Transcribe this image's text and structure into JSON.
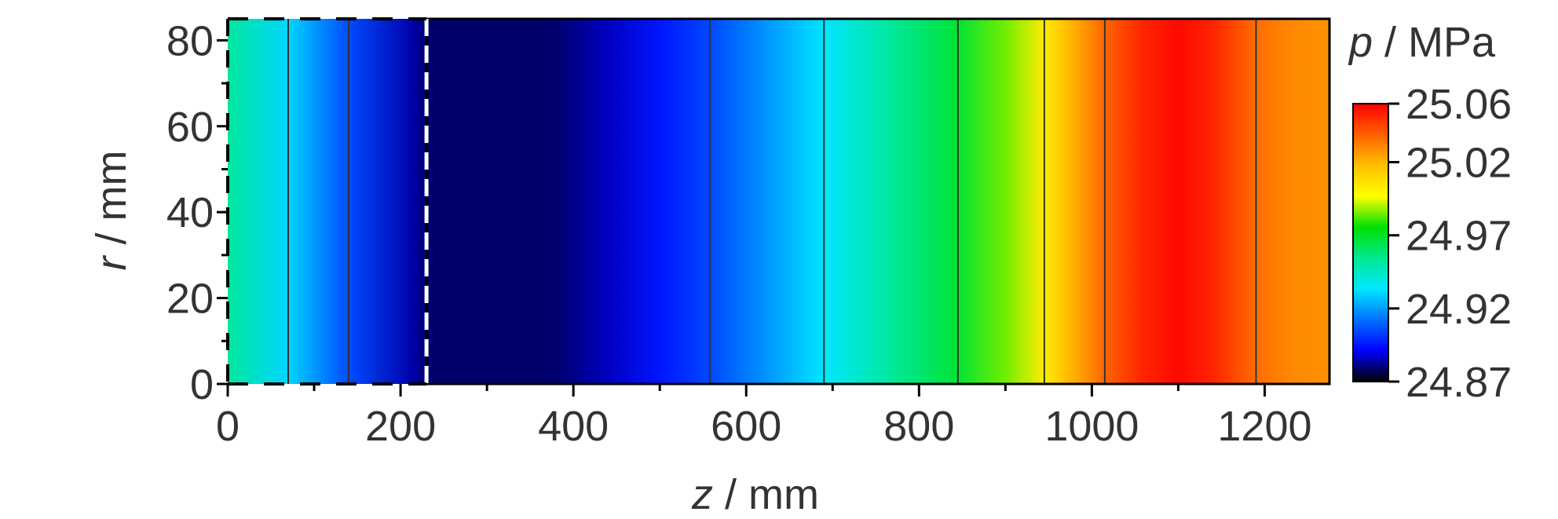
{
  "chart_data": {
    "type": "heatmap",
    "title": "",
    "xlabel": {
      "var": "z",
      "unit": " / mm"
    },
    "ylabel": {
      "var": "r",
      "unit": " / mm"
    },
    "xlim": [
      0,
      1275
    ],
    "ylim": [
      0,
      85
    ],
    "xticks": [
      "0",
      "200",
      "400",
      "600",
      "800",
      "1000",
      "1200"
    ],
    "yticks": [
      "0",
      "20",
      "40",
      "60",
      "80"
    ],
    "colorbar": {
      "label": {
        "var": "p",
        "unit": " / MPa"
      },
      "range": [
        24.87,
        25.06
      ],
      "tick_labels": [
        "25.06",
        "25.02",
        "24.97",
        "24.92",
        "24.87"
      ],
      "tick_values": [
        25.06,
        25.02,
        24.97,
        24.92,
        24.87
      ],
      "colors": [
        "#000000",
        "#0000ff",
        "#0070ff",
        "#00e8ff",
        "#00e890",
        "#00e000",
        "#ffff00",
        "#ffc000",
        "#ff6000",
        "#ff0000"
      ]
    },
    "pressure_profile_along_z": {
      "z": [
        0,
        70,
        140,
        215,
        230,
        380,
        440,
        500,
        560,
        620,
        690,
        760,
        845,
        900,
        945,
        980,
        1015,
        1060,
        1100,
        1140,
        1190,
        1230,
        1275
      ],
      "p": [
        24.952,
        24.93,
        24.905,
        24.884,
        24.879,
        24.879,
        24.886,
        24.895,
        24.905,
        24.918,
        24.933,
        24.95,
        24.968,
        24.985,
        25.003,
        25.022,
        25.038,
        25.052,
        25.058,
        25.052,
        25.036,
        25.03,
        25.028
      ]
    },
    "contour_lines_z": [
      70,
      140,
      558,
      690,
      845,
      945,
      1015,
      1190
    ],
    "dashed_boundary": {
      "z_end": 230,
      "r_top": 85
    }
  }
}
